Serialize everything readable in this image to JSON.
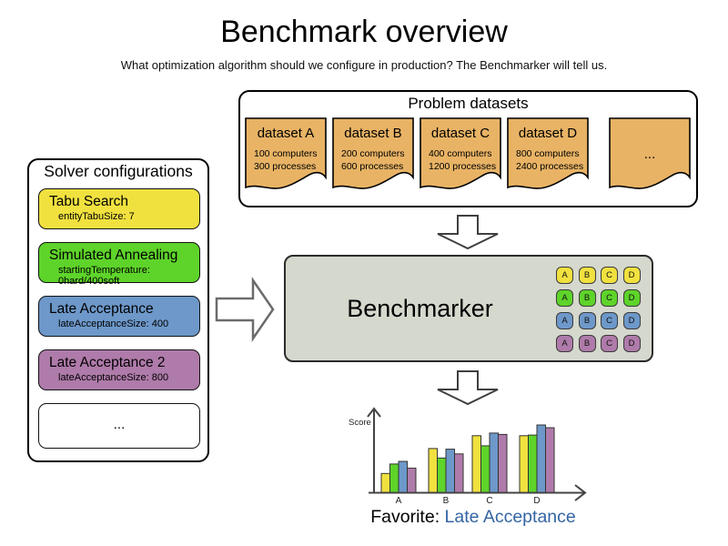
{
  "page": {
    "title": "Benchmark overview",
    "subtitle": "What optimization algorithm should we configure in production? The Benchmarker will tell us."
  },
  "datasets_panel": {
    "title": "Problem datasets",
    "card_color": "#e8b365",
    "items": [
      {
        "name": "dataset A",
        "computers": "100 computers",
        "processes": "300 processes"
      },
      {
        "name": "dataset B",
        "computers": "200 computers",
        "processes": "600 processes"
      },
      {
        "name": "dataset C",
        "computers": "400 computers",
        "processes": "1200 processes"
      },
      {
        "name": "dataset D",
        "computers": "800 computers",
        "processes": "2400 processes"
      }
    ],
    "more_label": "..."
  },
  "solvers_panel": {
    "title": "Solver configurations",
    "items": [
      {
        "name": "Tabu Search",
        "param": "entityTabuSize: 7",
        "color": "#f1e13f"
      },
      {
        "name": "Simulated Annealing",
        "param": "startingTemperature: 0hard/400soft",
        "color": "#5ed42a"
      },
      {
        "name": "Late Acceptance",
        "param": "lateAcceptanceSize: 400",
        "color": "#6d98c9"
      },
      {
        "name": "Late Acceptance 2",
        "param": "lateAcceptanceSize: 800",
        "color": "#af7baa"
      }
    ],
    "more_label": "..."
  },
  "benchmarker": {
    "label": "Benchmarker",
    "bg_color": "#d5d8cd",
    "grid": {
      "columns": [
        "A",
        "B",
        "C",
        "D"
      ],
      "row_colors": [
        "#f1e13f",
        "#5ed42a",
        "#6d98c9",
        "#af7baa"
      ]
    }
  },
  "chart_data": {
    "type": "bar",
    "title": "",
    "xlabel": "",
    "ylabel": "Score",
    "categories": [
      "A",
      "B",
      "C",
      "D"
    ],
    "series": [
      {
        "name": "Tabu Search",
        "color": "#f1e13f",
        "values": [
          28,
          65,
          84,
          84
        ]
      },
      {
        "name": "Simulated Annealing",
        "color": "#5ed42a",
        "values": [
          42,
          51,
          69,
          85
        ]
      },
      {
        "name": "Late Acceptance",
        "color": "#6d98c9",
        "values": [
          46,
          64,
          88,
          100
        ]
      },
      {
        "name": "Late Acceptance 2",
        "color": "#af7baa",
        "values": [
          36,
          57,
          86,
          96
        ]
      }
    ],
    "ylim": [
      0,
      100
    ],
    "grid": false,
    "legend": "none"
  },
  "favorite": {
    "label": "Favorite: ",
    "value": "Late Acceptance",
    "value_color": "#3465a4"
  }
}
